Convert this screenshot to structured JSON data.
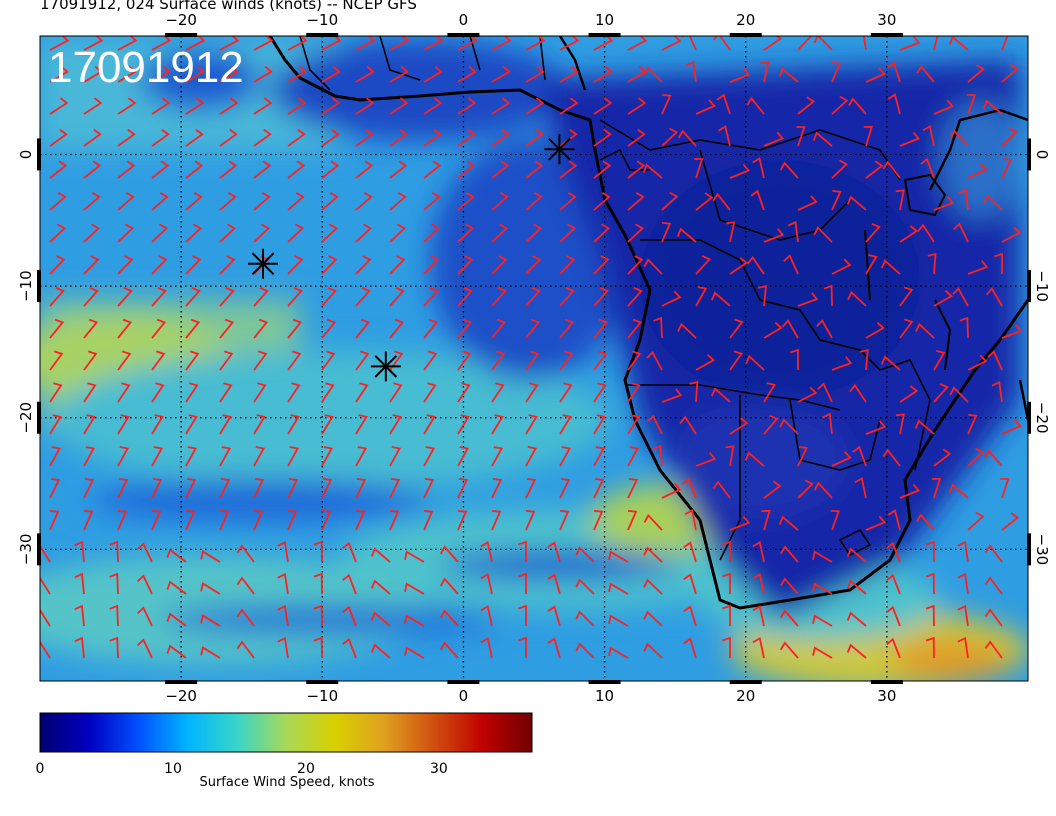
{
  "title": "17091912, 024 Surface winds (knots) -- NCEP GFS",
  "stamp": "17091912",
  "map": {
    "lon_range": [
      -30,
      40
    ],
    "lat_range": [
      -40,
      9
    ],
    "lon_ticks": [
      "−20",
      "−10",
      "0",
      "10",
      "20",
      "30"
    ],
    "lon_values": [
      -20,
      -10,
      0,
      10,
      20,
      30
    ],
    "lat_ticks": [
      "0",
      "−10",
      "−20",
      "−30"
    ],
    "lat_values": [
      0,
      -10,
      -20,
      -30
    ],
    "grid": true,
    "barb_color": "#ff2020",
    "markers": [
      {
        "name": "storm-marker",
        "lon": 6.8,
        "lat": 0.4
      },
      {
        "name": "storm-marker",
        "lon": -14.2,
        "lat": -8.3
      },
      {
        "name": "storm-marker",
        "lon": -5.5,
        "lat": -16.1
      }
    ]
  },
  "colorbar": {
    "label": "Surface Wind Speed, knots",
    "tick_labels": [
      "0",
      "10",
      "20",
      "30"
    ],
    "tick_values": [
      0,
      10,
      20,
      30
    ],
    "range": [
      0,
      37
    ],
    "colors": [
      "#000070",
      "#0000c0",
      "#0050ff",
      "#00b4ff",
      "#38d6c8",
      "#a8d858",
      "#d8d000",
      "#e0a020",
      "#d05010",
      "#c00000",
      "#700000"
    ]
  }
}
